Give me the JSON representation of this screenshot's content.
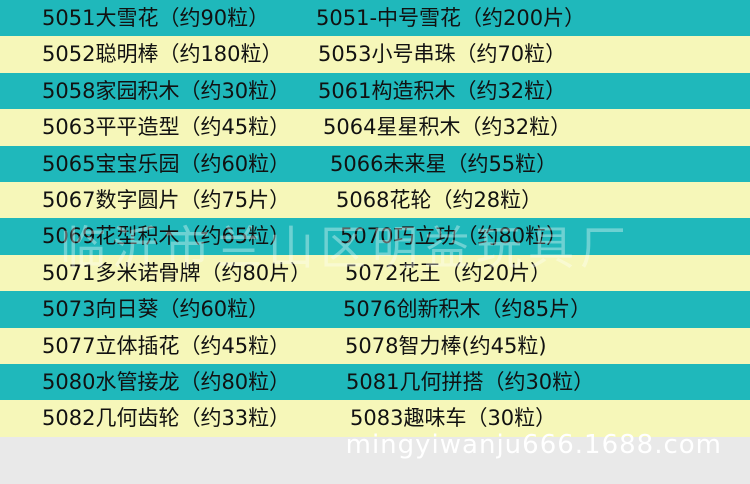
{
  "rows": [
    [
      "5051大雪花（约90粒）",
      "5051-中号雪花（约200片）"
    ],
    [
      "5052聪明棒（约180粒）",
      "5053小号串珠（约70粒）"
    ],
    [
      "5058家园积木（约30粒）",
      "5061构造积木（约32粒）"
    ],
    [
      "5063平平造型（约45粒）",
      "5064星星积木（约32粒）"
    ],
    [
      "5065宝宝乐园（约60粒）",
      "5066未来星（约55粒）"
    ],
    [
      "5067数字圆片（约75片）",
      "5068花轮（约28粒）"
    ],
    [
      "5069花型积木（约65粒）",
      "5070巧立功（约80粒）"
    ],
    [
      "5071多米诺骨牌（约80片）",
      "5072花王（约20片）"
    ],
    [
      "5073向日葵（约60粒）",
      "5076创新积木（约85片）"
    ],
    [
      "5077立体插花（约45粒）",
      "5078智力棒(约45粒)"
    ],
    [
      "5080水管接龙（约80粒）",
      "5081几何拼搭（约30粒）"
    ],
    [
      "5082几何齿轮（约33粒）",
      "5083趣味车（30粒）"
    ]
  ],
  "watermark": "临沂市兰山区明益玩具厂",
  "footer": "mingyiwanju666.1688.com"
}
